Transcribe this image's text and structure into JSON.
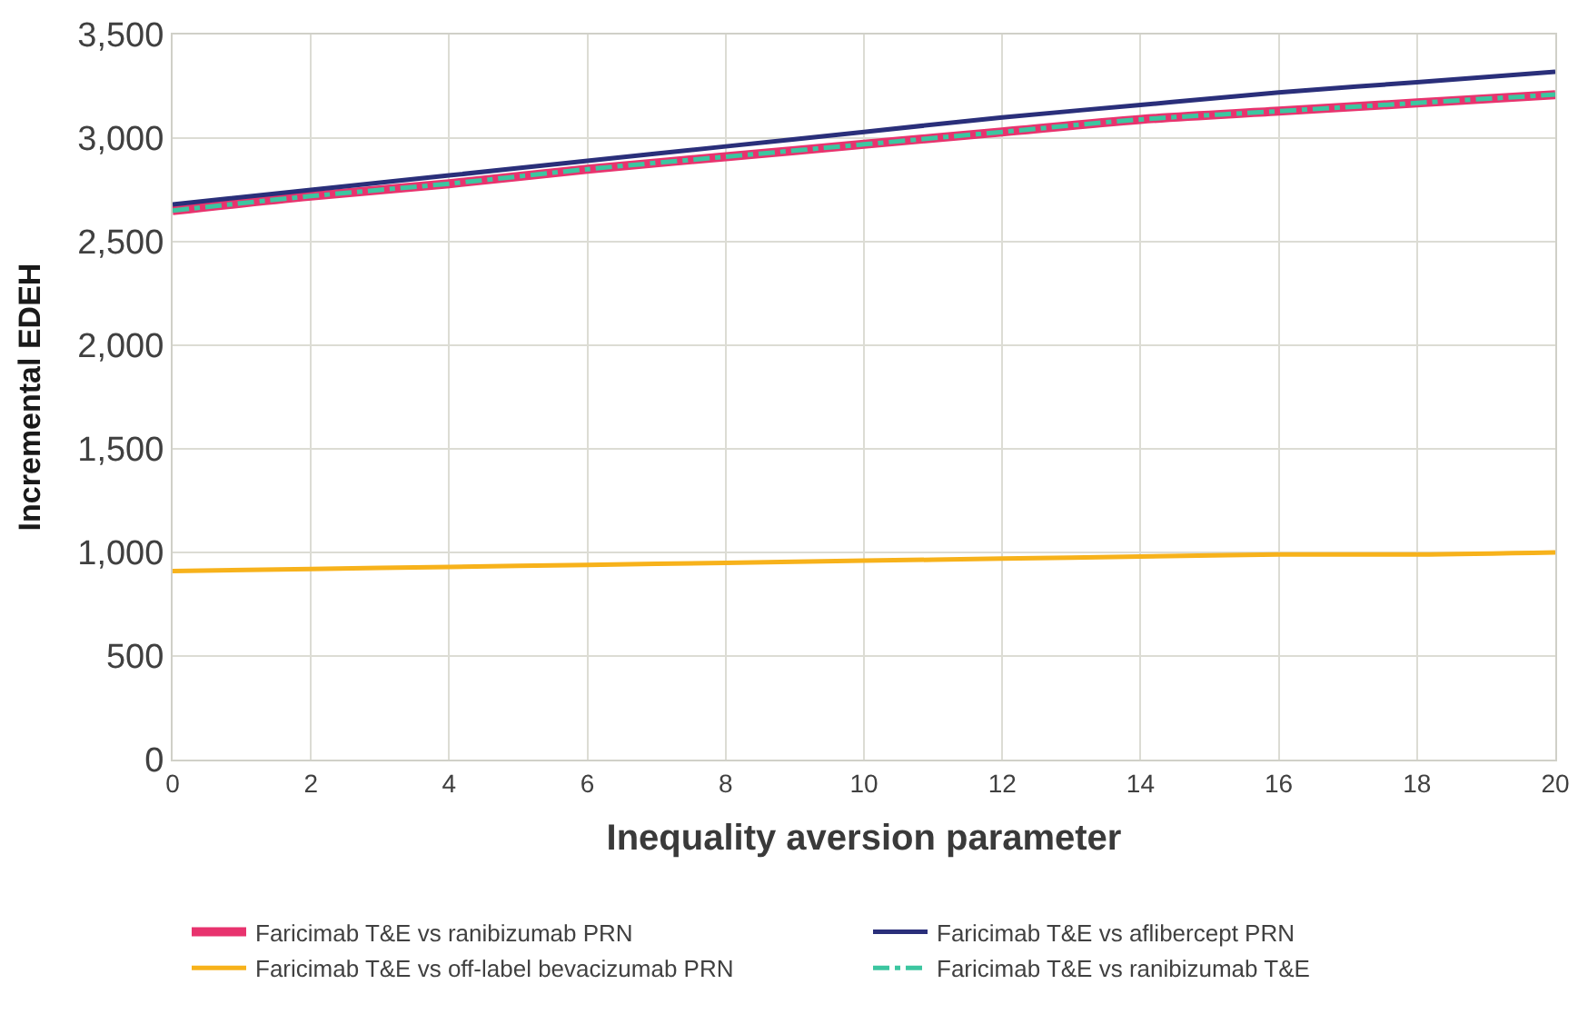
{
  "chart_data": {
    "type": "line",
    "xlabel": "Inequality aversion parameter",
    "ylabel": "Incremental EDEH",
    "x": [
      0,
      2,
      4,
      6,
      8,
      10,
      12,
      14,
      16,
      18,
      20
    ],
    "xlim": [
      0,
      20
    ],
    "xticks": [
      0,
      2,
      4,
      6,
      8,
      10,
      12,
      14,
      16,
      18,
      20
    ],
    "ylim": [
      0,
      3500
    ],
    "yticks": [
      {
        "value": 0,
        "label": "0"
      },
      {
        "value": 500,
        "label": "500"
      },
      {
        "value": 1000,
        "label": "1,000"
      },
      {
        "value": 1500,
        "label": "1,500"
      },
      {
        "value": 2000,
        "label": "2,000"
      },
      {
        "value": 2500,
        "label": "2,500"
      },
      {
        "value": 3000,
        "label": "3,000"
      },
      {
        "value": 3500,
        "label": "3,500"
      }
    ],
    "grid": true,
    "legend": "bottom",
    "marker": "none",
    "series": [
      {
        "name": "Faricimab T&E vs ranibizumab PRN",
        "color": "#e8336e",
        "line_style": "solid",
        "values": [
          2650,
          2720,
          2780,
          2850,
          2910,
          2970,
          3030,
          3090,
          3130,
          3170,
          3210
        ]
      },
      {
        "name": "Faricimab T&E vs aflibercept PRN",
        "color": "#2a2f7a",
        "line_style": "solid",
        "values": [
          2680,
          2750,
          2820,
          2890,
          2960,
          3030,
          3100,
          3160,
          3220,
          3270,
          3320
        ]
      },
      {
        "name": "Faricimab T&E vs off-label bevacizumab PRN",
        "color": "#f7b21b",
        "line_style": "solid",
        "values": [
          910,
          920,
          930,
          940,
          950,
          960,
          970,
          980,
          990,
          990,
          1000
        ]
      },
      {
        "name": "Faricimab T&E vs ranibizumab T&E",
        "color": "#3cc6a0",
        "line_style": "dashed",
        "values": [
          2650,
          2720,
          2780,
          2850,
          2910,
          2970,
          3030,
          3090,
          3130,
          3170,
          3210
        ]
      }
    ]
  }
}
